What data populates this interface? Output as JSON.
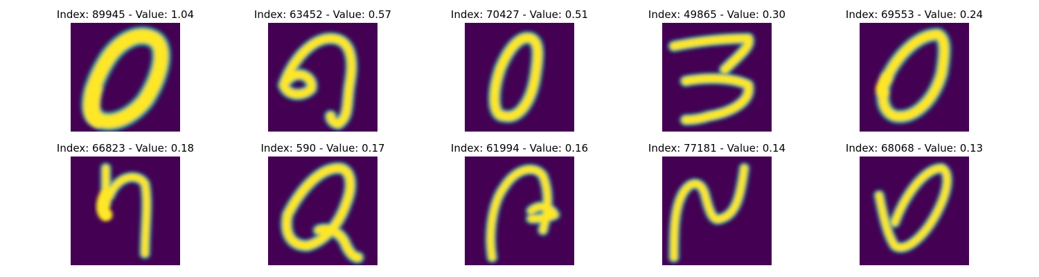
{
  "figure": {
    "colormap": "viridis",
    "colors": {
      "background": "#440154",
      "low": "#3b528b",
      "mid": "#21918c",
      "high": "#fde725",
      "title": "#000000"
    },
    "panels": [
      {
        "title": "Index: 89945 - Value: 1.04",
        "glyph": "zero-bold"
      },
      {
        "title": "Index: 63452 - Value: 0.57",
        "glyph": "nine-curl"
      },
      {
        "title": "Index: 70427 - Value: 0.51",
        "glyph": "zero-narrow"
      },
      {
        "title": "Index: 49865 - Value: 0.30",
        "glyph": "three-open"
      },
      {
        "title": "Index: 69553 - Value: 0.24",
        "glyph": "zero-open"
      },
      {
        "title": "Index: 66823 - Value: 0.18",
        "glyph": "h-hook"
      },
      {
        "title": "Index: 590 - Value: 0.17",
        "glyph": "q-loop"
      },
      {
        "title": "Index: 61994 - Value: 0.16",
        "glyph": "arc-hook"
      },
      {
        "title": "Index: 77181 - Value: 0.14",
        "glyph": "n-squiggle"
      },
      {
        "title": "Index: 68068 - Value: 0.13",
        "glyph": "v-loop"
      }
    ]
  }
}
